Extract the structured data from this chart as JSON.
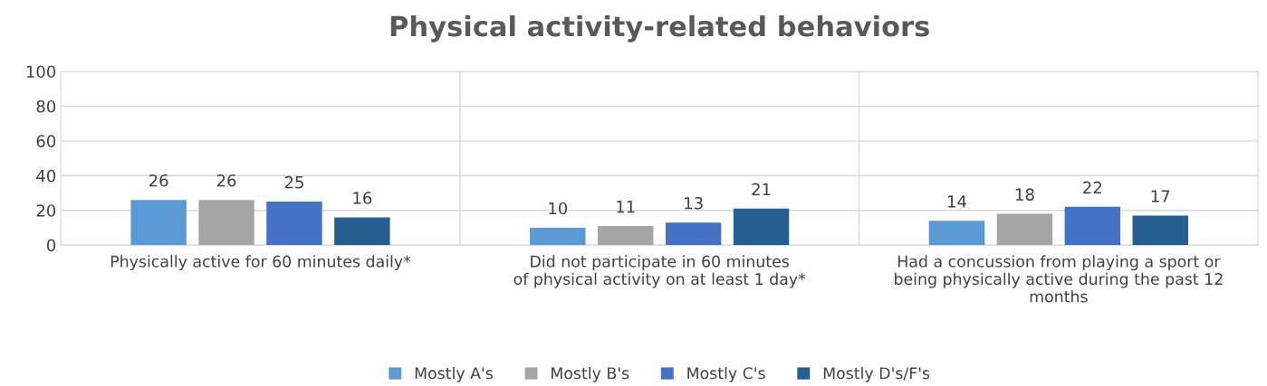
{
  "chart_data": {
    "type": "bar",
    "title": "Physical activity-related behaviors",
    "categories": [
      "Physically active for 60 minutes daily*",
      "Did not participate in 60 minutes\nof physical activity on at least 1 day*",
      "Had a concussion from playing a sport or\nbeing physically active during the past 12\nmonths"
    ],
    "series": [
      {
        "name": "Mostly A's",
        "color": "#5b9bd5",
        "values": [
          26,
          10,
          14
        ]
      },
      {
        "name": "Mostly B's",
        "color": "#a5a5a5",
        "values": [
          26,
          11,
          18
        ]
      },
      {
        "name": "Mostly C's",
        "color": "#4472c4",
        "values": [
          25,
          13,
          22
        ]
      },
      {
        "name": "Mostly D's/F's",
        "color": "#255e91",
        "values": [
          16,
          21,
          17
        ]
      }
    ],
    "ylim": [
      0,
      100
    ],
    "yticks": [
      0,
      20,
      40,
      60,
      80,
      100
    ],
    "grid": true,
    "legend": "bottom",
    "data_labels": true
  }
}
